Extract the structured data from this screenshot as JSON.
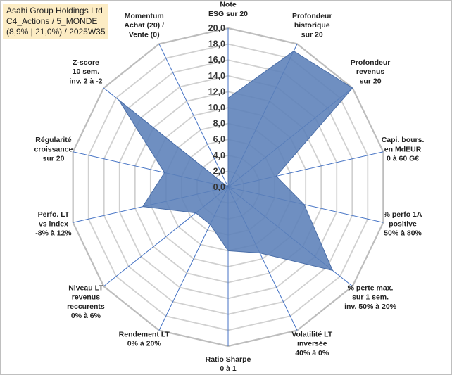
{
  "header": {
    "line1": "Asahi Group Holdings Ltd",
    "line2": "C4_Actions / 5_MONDE",
    "line3": "(8,9% | 21,0%) / 2025W35"
  },
  "chart_data": {
    "type": "radar",
    "rmin": 0,
    "rmax": 20,
    "ticks": [
      "0,0",
      "2,0",
      "4,0",
      "6,0",
      "8,0",
      "10,0",
      "12,0",
      "14,0",
      "16,0",
      "18,0",
      "20,0"
    ],
    "axes": [
      [
        "Note",
        "ESG sur 20"
      ],
      [
        "Profondeur",
        "historique",
        "sur 20"
      ],
      [
        "Profondeur",
        "revenus",
        "sur 20"
      ],
      [
        "Capi. bours.",
        "en MdEUR",
        "0 à 60 G€"
      ],
      [
        "% perfo 1A",
        "positive",
        "50% à 80%"
      ],
      [
        "% perte max.",
        "sur 1 sem.",
        "inv. 50% à 20%"
      ],
      [
        "Volatilité LT",
        "inversée",
        "40% à 0%"
      ],
      [
        "Ratio Sharpe",
        "0 à 1"
      ],
      [
        "Rendement LT",
        "0% à 20%"
      ],
      [
        "Niveau LT",
        "revenus",
        "reccurents",
        "0% à 6%"
      ],
      [
        "Perfo. LT",
        "vs index",
        "-8% à 12%"
      ],
      [
        "Régularité",
        "croissance",
        "sur 20"
      ],
      [
        "Z-score",
        "10 sem.",
        "inv. 2 à -2"
      ],
      [
        "Momentum",
        "Achat (20) /",
        "Vente (0)"
      ]
    ],
    "values": [
      11.2,
      19.0,
      20.0,
      6.2,
      9.8,
      16.8,
      9.2,
      8.0,
      5.2,
      5.2,
      11.0,
      8.2,
      17.6,
      0.0
    ],
    "series": [
      {
        "color": "#5b7fb8"
      }
    ],
    "grid": true
  }
}
